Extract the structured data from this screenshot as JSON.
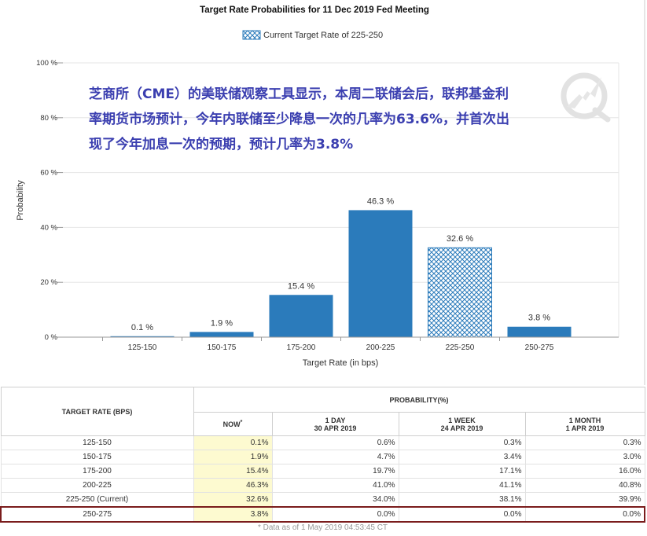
{
  "chart_data": {
    "type": "bar",
    "title": "Target Rate Probabilities for 11 Dec 2019 Fed Meeting",
    "legend": {
      "label": "Current Target Rate of 225-250",
      "placement": "top-center"
    },
    "categories": [
      "125-150",
      "150-175",
      "175-200",
      "200-225",
      "225-250",
      "250-275"
    ],
    "values": [
      0.1,
      1.9,
      15.4,
      46.3,
      32.6,
      3.8
    ],
    "data_labels": [
      "0.1 %",
      "1.9 %",
      "15.4 %",
      "46.3 %",
      "32.6 %",
      "3.8 %"
    ],
    "highlighted_category": "225-250",
    "xlabel": "Target Rate (in bps)",
    "ylabel": "Probability",
    "ylim": [
      0,
      100
    ],
    "yticks": [
      0,
      20,
      40,
      60,
      80,
      100
    ],
    "ytick_labels": [
      "0 %",
      "20 %",
      "40 %",
      "60 %",
      "80 %",
      "100 %"
    ],
    "grid": true,
    "colors": {
      "bar": "#2b7bbb",
      "hatch": "#2b7bbb",
      "grid": "#e6e6e6"
    }
  },
  "annotation": {
    "lines": [
      "芝商所（CME）的美联储观察工具显示，本周二联储会后，联邦基金利",
      "率期货市场预计，今年内联储至少降息一次的几率为63.6%，并首次出",
      "现了今年加息一次的预期，预计几率为3.8%"
    ],
    "color": "#3b3fb0"
  },
  "table": {
    "header_rate": "TARGET RATE (BPS)",
    "header_prob": "PROBABILITY(%)",
    "col_now": "NOW",
    "col_now_mark": "*",
    "col_1day": "1 DAY",
    "col_1day_date": "30 APR 2019",
    "col_1week": "1 WEEK",
    "col_1week_date": "24 APR 2019",
    "col_1month": "1 MONTH",
    "col_1month_date": "1 APR 2019",
    "rows": [
      {
        "rate": "125-150",
        "now": "0.1%",
        "d1": "0.6%",
        "w1": "0.3%",
        "m1": "0.3%"
      },
      {
        "rate": "150-175",
        "now": "1.9%",
        "d1": "4.7%",
        "w1": "3.4%",
        "m1": "3.0%"
      },
      {
        "rate": "175-200",
        "now": "15.4%",
        "d1": "19.7%",
        "w1": "17.1%",
        "m1": "16.0%"
      },
      {
        "rate": "200-225",
        "now": "46.3%",
        "d1": "41.0%",
        "w1": "41.1%",
        "m1": "40.8%"
      },
      {
        "rate": "225-250 (Current)",
        "now": "32.6%",
        "d1": "34.0%",
        "w1": "38.1%",
        "m1": "39.9%"
      },
      {
        "rate": "250-275",
        "now": "3.8%",
        "d1": "0.0%",
        "w1": "0.0%",
        "m1": "0.0%"
      }
    ],
    "note": "* Data as of 1 May 2019 04:53:45 CT",
    "highlight_color": "#7a1c1c",
    "now_bg": "#fdfad0"
  }
}
